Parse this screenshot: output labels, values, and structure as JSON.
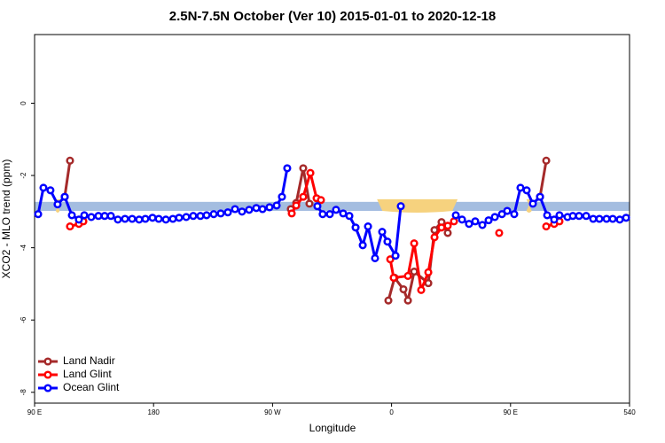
{
  "chart_data": {
    "type": "line",
    "title": "2.5N-7.5N October (Ver 10)   2015-01-01 to 2020-12-18",
    "x_label": "Longitude",
    "y_label": "XCO2 - MLO trend (ppm)",
    "xlim": [
      90,
      540
    ],
    "ylim": [
      -8.3,
      1.9
    ],
    "xticks": [
      {
        "value": 90,
        "label": "90 E"
      },
      180,
      {
        "value": 270,
        "label": "90 W"
      },
      {
        "value": 360,
        "label": "0"
      },
      {
        "value": 450,
        "label": "90 E"
      },
      540
    ],
    "yticks": [
      0,
      -2,
      -4,
      -6,
      -8
    ],
    "band": {
      "color": "#a4bde0",
      "range": [
        -2.98,
        -2.73
      ]
    },
    "highlight": {
      "color": "#f6d27e",
      "ranges": [
        [
          349,
          410
        ],
        [
          105,
          110
        ],
        [
          462,
          466
        ]
      ]
    },
    "legend": "bottom-left",
    "series": [
      {
        "name": "Land Nadir",
        "color": "#a52a2a",
        "x": [
          112.8,
          116.8,
          null,
          283.8,
          287.9,
          293.2,
          297.9,
          null,
          357.6,
          362.3,
          369,
          372.4,
          377.1,
          387.8,
          392.5,
          397.8,
          402.5,
          null,
          472.3,
          477
        ],
        "values": [
          -2.59,
          -1.59,
          null,
          -2.93,
          -2.76,
          -1.8,
          -2.78,
          null,
          -5.46,
          -4.83,
          -5.15,
          -5.46,
          -4.66,
          -4.98,
          -3.51,
          -3.29,
          -3.59,
          null,
          -2.59,
          -1.59
        ]
      },
      {
        "name": "Land Glint",
        "color": "#ff0000",
        "x": [
          116.8,
          123.5,
          126.9,
          null,
          284.5,
          287.9,
          293.2,
          298.6,
          303.3,
          306.6,
          null,
          359,
          361.6,
          372.4,
          377.1,
          382.4,
          387.8,
          392.5,
          397.8,
          402.5,
          407.2,
          null,
          441.4,
          null,
          477,
          483,
          487
        ],
        "values": [
          -3.41,
          -3.34,
          -3.27,
          null,
          -3.05,
          -2.83,
          -2.59,
          -1.93,
          -2.63,
          -2.68,
          null,
          -4.32,
          -4.83,
          -4.78,
          -3.88,
          -5.17,
          -4.68,
          -3.71,
          -3.44,
          -3.39,
          -3.27,
          null,
          -3.59,
          null,
          -3.41,
          -3.34,
          -3.27
        ]
      },
      {
        "name": "Ocean Glint",
        "color": "#0000ff",
        "x": [
          92.7,
          96.7,
          102,
          107.4,
          112.8,
          118.2,
          123.5,
          127.6,
          132.9,
          138.3,
          143,
          147.7,
          153,
          158.4,
          163.8,
          169.1,
          173.8,
          179.2,
          183.9,
          189.3,
          194.6,
          199.3,
          204.7,
          210,
          215.4,
          220.1,
          225.5,
          230.8,
          236.2,
          241.6,
          246.9,
          252.3,
          257.7,
          262.4,
          267.7,
          273.1,
          277.1,
          281.1,
          null,
          303.9,
          307.9,
          313.3,
          318,
          323.4,
          328.1,
          332.8,
          338.2,
          342.2,
          347.5,
          352.9,
          356.9,
          363,
          367,
          null,
          408.6,
          413.3,
          418.6,
          423.3,
          428.7,
          433.4,
          438.1,
          443.5,
          447.5,
          452.8,
          457.5,
          462.2,
          466.9,
          472.3,
          477.7,
          483,
          487,
          493.1,
          497.1,
          501.8,
          507.2,
          512.5,
          517.2,
          522.6,
          527.3,
          532.6,
          537.4
        ],
        "values": [
          -3.07,
          -2.34,
          -2.41,
          -2.8,
          -2.59,
          -3.1,
          -3.22,
          -3.1,
          -3.15,
          -3.12,
          -3.12,
          -3.12,
          -3.22,
          -3.2,
          -3.2,
          -3.22,
          -3.2,
          -3.17,
          -3.2,
          -3.22,
          -3.2,
          -3.17,
          -3.15,
          -3.12,
          -3.12,
          -3.1,
          -3.07,
          -3.05,
          -3.02,
          -2.93,
          -3.0,
          -2.95,
          -2.9,
          -2.93,
          -2.88,
          -2.83,
          -2.59,
          -1.8,
          null,
          -2.85,
          -3.07,
          -3.07,
          -2.95,
          -3.05,
          -3.12,
          -3.44,
          -3.93,
          -3.41,
          -4.29,
          -3.56,
          -3.83,
          -4.22,
          -2.85,
          null,
          -3.1,
          -3.22,
          -3.34,
          -3.27,
          -3.37,
          -3.24,
          -3.15,
          -3.07,
          -2.98,
          -3.07,
          -2.34,
          -2.41,
          -2.78,
          -2.59,
          -3.1,
          -3.22,
          -3.1,
          -3.15,
          -3.12,
          -3.12,
          -3.12,
          -3.2,
          -3.2,
          -3.2,
          -3.2,
          -3.22,
          -3.17
        ]
      }
    ]
  }
}
